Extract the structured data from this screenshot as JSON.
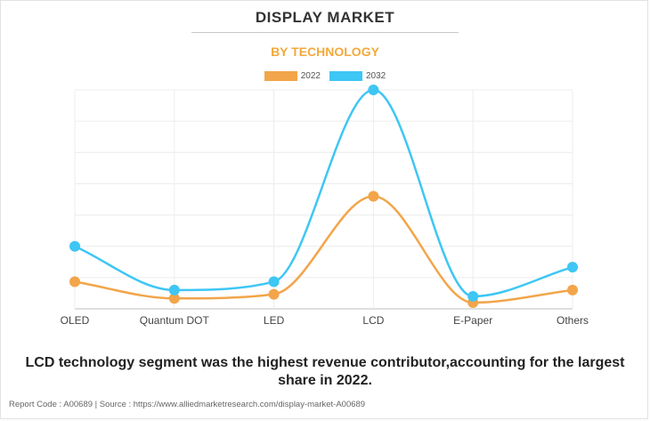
{
  "header": {
    "title": "DISPLAY MARKET",
    "subtitle": "BY TECHNOLOGY"
  },
  "legend": [
    {
      "label": "2022",
      "color": "#f2a54a"
    },
    {
      "label": "2032",
      "color": "#3ec6f4"
    }
  ],
  "chart_data": {
    "type": "line",
    "title": "",
    "categories": [
      "OLED",
      "Quantum DOT",
      "LED",
      "LCD",
      "E-Paper",
      "Others"
    ],
    "series": [
      {
        "name": "2022",
        "color": "#f2a54a",
        "values": [
          13,
          5,
          7,
          54,
          3,
          9
        ]
      },
      {
        "name": "2032",
        "color": "#3ec6f4",
        "values": [
          30,
          9,
          13,
          105,
          6,
          20
        ]
      }
    ],
    "ylim": [
      0,
      105
    ],
    "grid": true,
    "xlabel": "",
    "ylabel": "",
    "legend_position": "top"
  },
  "caption": "LCD technology segment was the highest revenue contributor,accounting for the largest share in 2022.",
  "footer": "Report Code : A00689  |  Source : https://www.alliedmarketresearch.com/display-market-A00689"
}
